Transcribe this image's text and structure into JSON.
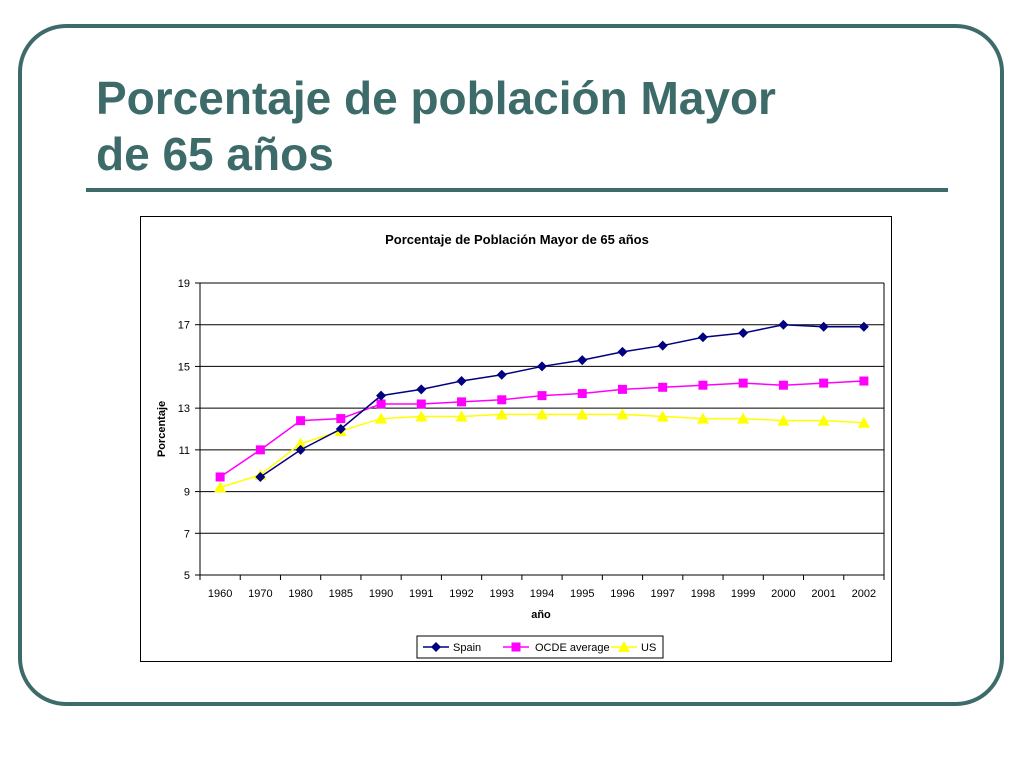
{
  "slide": {
    "title_line1": "Porcentaje de población Mayor",
    "title_line2": "de 65 años",
    "accent_color": "#3d6b69"
  },
  "chart_data": {
    "type": "line",
    "title": "Porcentaje de Población Mayor de 65 años",
    "xlabel": "año",
    "ylabel": "Porcentaje",
    "categories": [
      "1960",
      "1970",
      "1980",
      "1985",
      "1990",
      "1991",
      "1992",
      "1993",
      "1994",
      "1995",
      "1996",
      "1997",
      "1998",
      "1999",
      "2000",
      "2001",
      "2002"
    ],
    "ylim": [
      5,
      19
    ],
    "yticks": [
      5,
      7,
      9,
      11,
      13,
      15,
      17,
      19
    ],
    "grid": true,
    "legend_position": "bottom",
    "series": [
      {
        "name": "Spain",
        "color": "#000080",
        "marker": "diamond",
        "values": [
          null,
          9.7,
          11.0,
          12.0,
          13.6,
          13.9,
          14.3,
          14.6,
          15.0,
          15.3,
          15.7,
          16.0,
          16.4,
          16.6,
          17.0,
          16.9,
          16.9
        ]
      },
      {
        "name": "OCDE average",
        "color": "#ff00ff",
        "marker": "square",
        "values": [
          9.7,
          11.0,
          12.4,
          12.5,
          13.2,
          13.2,
          13.3,
          13.4,
          13.6,
          13.7,
          13.9,
          14.0,
          14.1,
          14.2,
          14.1,
          14.2,
          14.3
        ]
      },
      {
        "name": "US",
        "color": "#ffff00",
        "marker": "triangle",
        "values": [
          9.2,
          9.8,
          11.3,
          11.9,
          12.5,
          12.6,
          12.6,
          12.7,
          12.7,
          12.7,
          12.7,
          12.6,
          12.5,
          12.5,
          12.4,
          12.4,
          12.3
        ]
      }
    ]
  }
}
